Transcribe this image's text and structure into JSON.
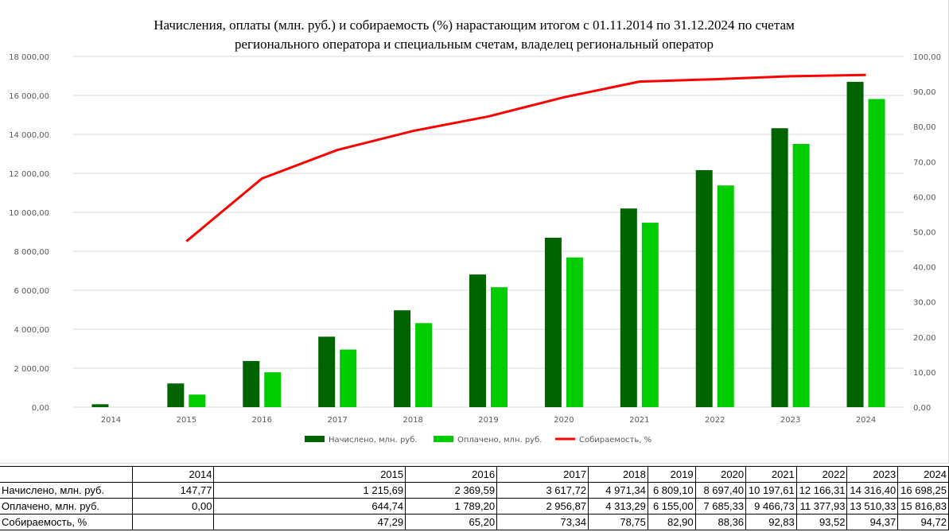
{
  "chart_data": {
    "type": "bar",
    "title_lines": [
      "Начисления, оплаты (млн. руб.) и собираемость (%) нарастающим итогом с 01.11.2014 по 31.12.2024 по счетам",
      "регионального оператора и специальным счетам, владелец региональный оператор"
    ],
    "categories": [
      "2014",
      "2015",
      "2016",
      "2017",
      "2018",
      "2019",
      "2020",
      "2021",
      "2022",
      "2023",
      "2024"
    ],
    "series": [
      {
        "name": "Начислено, млн. руб.",
        "type": "bar",
        "axis": "left",
        "color": "#006400",
        "values": [
          147.77,
          1215.69,
          2369.59,
          3617.72,
          4971.34,
          6809.1,
          8697.4,
          10197.61,
          12166.31,
          14316.4,
          16698.25
        ]
      },
      {
        "name": "Оплачено, млн. руб.",
        "type": "bar",
        "axis": "left",
        "color": "#00cc00",
        "values": [
          0.0,
          644.74,
          1789.2,
          2956.87,
          4313.29,
          6155.0,
          7685.33,
          9466.73,
          11377.93,
          13510.33,
          15816.83
        ]
      },
      {
        "name": "Собираемость, %",
        "type": "line",
        "axis": "right",
        "color": "#ff0000",
        "values": [
          null,
          47.29,
          65.2,
          73.34,
          78.75,
          82.9,
          88.36,
          92.83,
          93.52,
          94.37,
          94.72
        ]
      }
    ],
    "y_left": {
      "min": 0,
      "max": 18000,
      "step": 2000,
      "tick_labels": [
        "0,00",
        "2 000,00",
        "4 000,00",
        "6 000,00",
        "8 000,00",
        "10 000,00",
        "12 000,00",
        "14 000,00",
        "16 000,00",
        "18 000,00"
      ]
    },
    "y_right": {
      "min": 0,
      "max": 100,
      "step": 10,
      "tick_labels": [
        "0,00",
        "10,00",
        "20,00",
        "30,00",
        "40,00",
        "50,00",
        "60,00",
        "70,00",
        "80,00",
        "90,00",
        "100,00"
      ]
    },
    "grid": true,
    "legend_position": "bottom"
  },
  "table": {
    "years": [
      "2014",
      "2015",
      "2016",
      "2017",
      "2018",
      "2019",
      "2020",
      "2021",
      "2022",
      "2023",
      "2024"
    ],
    "rows": [
      {
        "label": "Начислено, млн. руб.",
        "cells": [
          "147,77",
          "1 215,69",
          "2 369,59",
          "3 617,72",
          "4 971,34",
          "6 809,10",
          "8 697,40",
          "10 197,61",
          "12 166,31",
          "14 316,40",
          "16 698,25"
        ]
      },
      {
        "label": "Оплачено, млн. руб.",
        "cells": [
          "0,00",
          "644,74",
          "1 789,20",
          "2 956,87",
          "4 313,29",
          "6 155,00",
          "7 685,33",
          "9 466,73",
          "11 377,93",
          "13 510,33",
          "15 816,83"
        ]
      },
      {
        "label": "Собираемость, %",
        "cells": [
          "",
          "47,29",
          "65,20",
          "73,34",
          "78,75",
          "82,90",
          "88,36",
          "92,83",
          "93,52",
          "94,37",
          "94,72"
        ]
      }
    ]
  }
}
